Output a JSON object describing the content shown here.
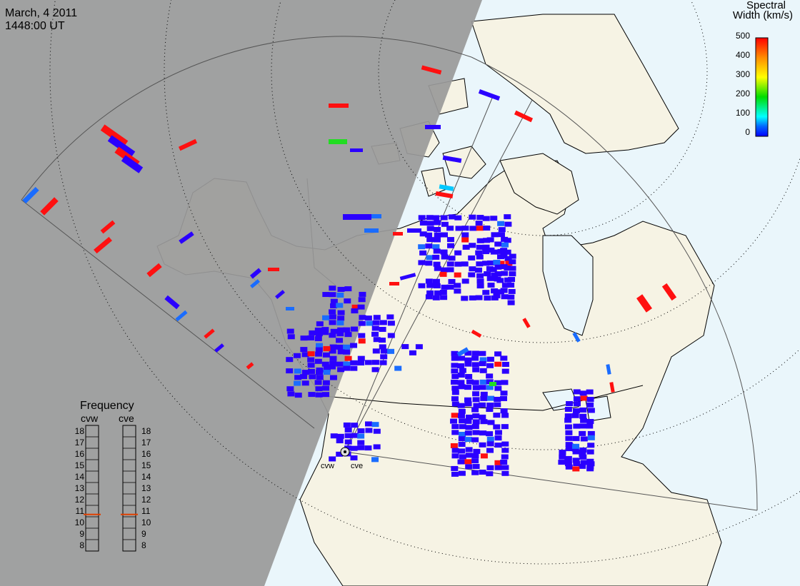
{
  "header": {
    "date": "March, 4 2011",
    "time": "1448:00 UT"
  },
  "colorbar": {
    "title_line1": "Spectral",
    "title_line2": "Width (km/s)",
    "ticks": [
      "500",
      "400",
      "300",
      "200",
      "100",
      "0"
    ],
    "gradient": [
      "#ff0000",
      "#ff8c00",
      "#ffff00",
      "#00dd00",
      "#00ffff",
      "#0064ff",
      "#0000ff"
    ]
  },
  "frequency_panel": {
    "title": "Frequency",
    "left_label": "cvw",
    "right_label": "cve",
    "scale": [
      "18",
      "17",
      "16",
      "15",
      "14",
      "13",
      "12",
      "11",
      "10",
      "9",
      "8"
    ],
    "cvw_level": 10.7,
    "cve_level": 10.7,
    "marker_color": "#e04000"
  },
  "radars": {
    "west": "cvw",
    "east": "cve"
  },
  "colors": {
    "night": "#9a9a9a",
    "land": "#f6f3e4",
    "ocean": "#eaf6fb",
    "low_width": "#2a00ff",
    "high_width": "#ff1010"
  }
}
